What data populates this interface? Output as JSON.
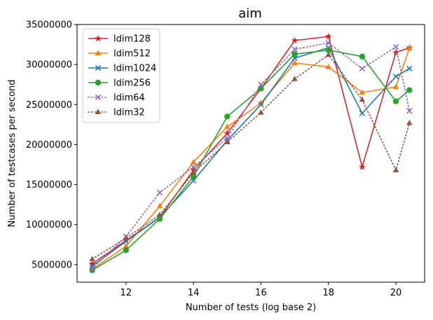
{
  "chart_data": {
    "type": "line",
    "title": "aim",
    "xlabel": "Number of tests (log base 2)",
    "ylabel": "Number of testcases per second",
    "xlim": [
      10.55,
      20.85
    ],
    "ylim": [
      2800000,
      35000000
    ],
    "xticks": [
      12,
      14,
      16,
      18,
      20
    ],
    "yticks": [
      5000000,
      10000000,
      15000000,
      20000000,
      25000000,
      30000000,
      35000000
    ],
    "grid": false,
    "legend_position": "top-left",
    "x": [
      11,
      12,
      13,
      14,
      15,
      16,
      17,
      18,
      19,
      20,
      20.4
    ],
    "series": [
      {
        "name": "ldim128",
        "color": "#d62728",
        "marker": "star",
        "dash": "solid",
        "values": [
          5100000,
          8000000,
          10900000,
          16800000,
          21400000,
          27000000,
          33000000,
          33500000,
          17200000,
          31500000,
          32100000
        ]
      },
      {
        "name": "ldim512",
        "color": "#ff7f0e",
        "marker": "triangle",
        "dash": "solid",
        "values": [
          4400000,
          7300000,
          12300000,
          17800000,
          22200000,
          25200000,
          30200000,
          29700000,
          26500000,
          27200000,
          32000000
        ]
      },
      {
        "name": "ldim1024",
        "color": "#1f77b4",
        "marker": "x",
        "dash": "solid",
        "values": [
          4800000,
          7900000,
          10900000,
          15500000,
          20500000,
          25000000,
          30800000,
          32100000,
          23900000,
          28500000,
          29500000
        ]
      },
      {
        "name": "ldim256",
        "color": "#2ca02c",
        "marker": "circle",
        "dash": "solid",
        "values": [
          4300000,
          6800000,
          10700000,
          16000000,
          23500000,
          27000000,
          31300000,
          31800000,
          31000000,
          25400000,
          26800000
        ]
      },
      {
        "name": "ldim64",
        "color": "#9467bd",
        "marker": "x",
        "dash": "dotted",
        "values": [
          4500000,
          8500000,
          14000000,
          17200000,
          20800000,
          27500000,
          31900000,
          32700000,
          29500000,
          32200000,
          24200000
        ]
      },
      {
        "name": "ldim32",
        "color": "#8c564b",
        "marker": "triangle",
        "dash": "dotted",
        "values": [
          5700000,
          8300000,
          11200000,
          16500000,
          20300000,
          24000000,
          28200000,
          31200000,
          25600000,
          16800000,
          22700000
        ]
      }
    ]
  }
}
